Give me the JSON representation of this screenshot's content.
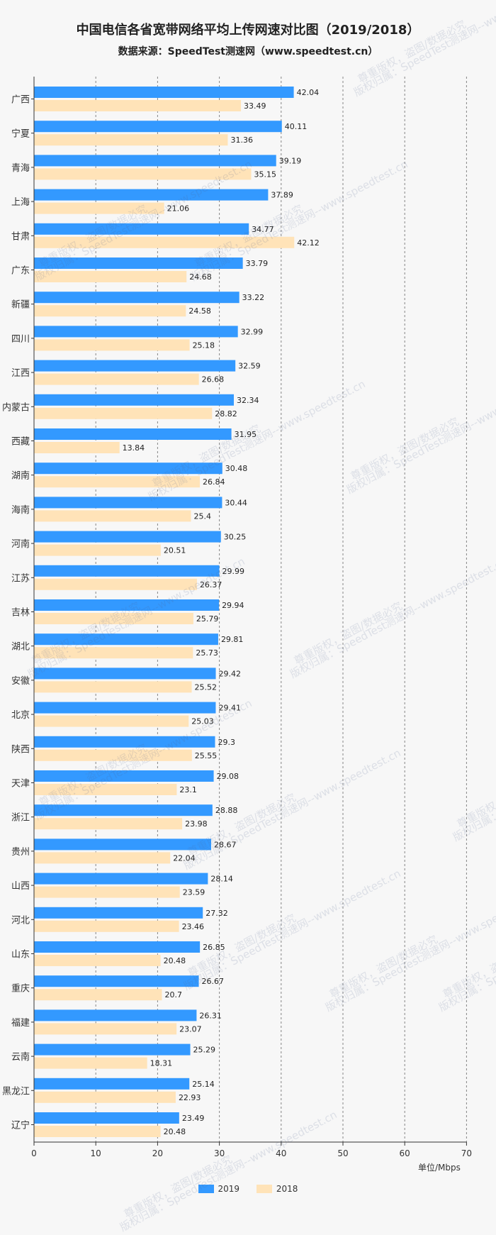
{
  "title": "中国电信各省宽带网络平均上传网速对比图（2019/2018）",
  "subtitle": "数据来源：SpeedTest测速网（www.speedtest.cn）",
  "unit_label": "单位/Mbps",
  "watermark_lines": [
    "版权归属：SpeedTest测速网--www.speedtest.cn",
    "尊重版权，盗图/数据必究"
  ],
  "colors": {
    "2019": "#3399ff",
    "2018": "#ffe3b8",
    "grid": "#555555",
    "axis": "#333333"
  },
  "chart_data": {
    "type": "bar",
    "orientation": "horizontal",
    "title": "中国电信各省宽带网络平均上传网速对比图（2019/2018）",
    "xlim": [
      0,
      70
    ],
    "xticks": [
      0,
      10,
      20,
      30,
      40,
      50,
      60,
      70
    ],
    "grid": "vertical dashed",
    "legend_position": "bottom",
    "categories": [
      "广西",
      "宁夏",
      "青海",
      "上海",
      "甘肃",
      "广东",
      "新疆",
      "四川",
      "江西",
      "内蒙古",
      "西藏",
      "湖南",
      "海南",
      "河南",
      "江苏",
      "吉林",
      "湖北",
      "安徽",
      "北京",
      "陕西",
      "天津",
      "浙江",
      "贵州",
      "山西",
      "河北",
      "山东",
      "重庆",
      "福建",
      "云南",
      "黑龙江",
      "辽宁"
    ],
    "series": [
      {
        "name": "2019",
        "values": [
          42.04,
          40.11,
          39.19,
          37.89,
          34.77,
          33.79,
          33.22,
          32.99,
          32.59,
          32.34,
          31.95,
          30.48,
          30.44,
          30.25,
          29.99,
          29.94,
          29.81,
          29.42,
          29.41,
          29.3,
          29.08,
          28.88,
          28.67,
          28.14,
          27.32,
          26.85,
          26.67,
          26.31,
          25.29,
          25.14,
          23.49
        ]
      },
      {
        "name": "2018",
        "values": [
          33.49,
          31.36,
          35.15,
          21.06,
          42.12,
          24.68,
          24.58,
          25.18,
          26.68,
          28.82,
          13.84,
          26.84,
          25.4,
          20.51,
          26.37,
          25.79,
          25.73,
          25.52,
          25.03,
          25.55,
          23.1,
          23.98,
          22.04,
          23.59,
          23.46,
          20.48,
          20.7,
          23.07,
          18.31,
          22.93,
          20.48
        ]
      }
    ]
  }
}
